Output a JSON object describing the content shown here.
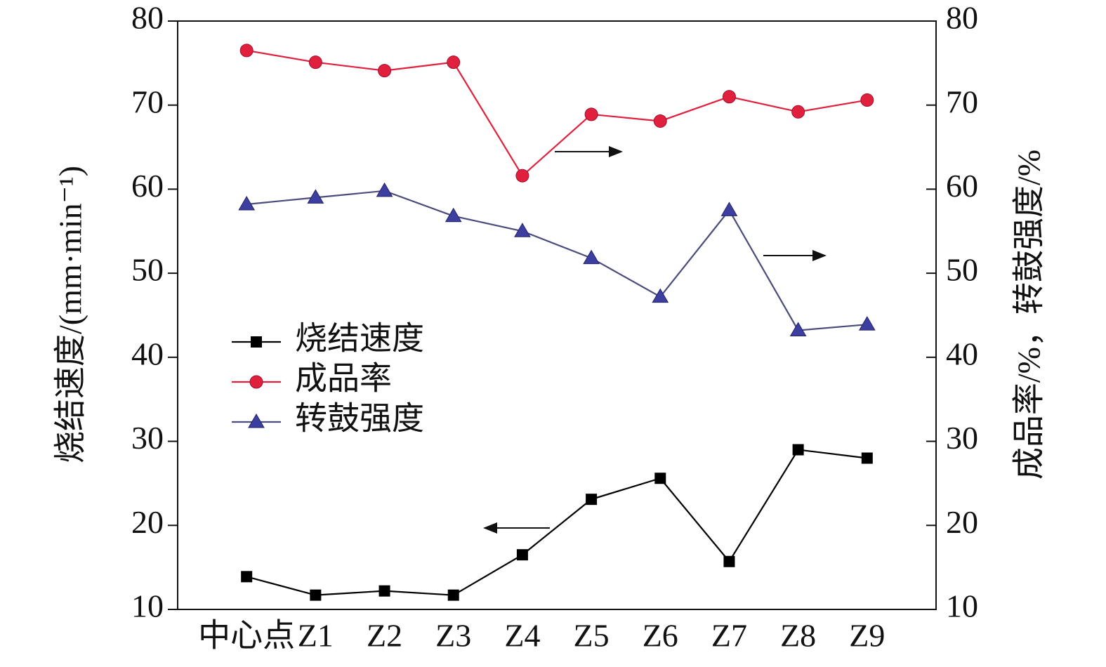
{
  "chart_data": {
    "type": "line",
    "y_label": "烧结速度/(mm·min⁻¹)",
    "y2_label": "成品率/%，转鼓强度/%",
    "categories": [
      "中心点",
      "Z1",
      "Z2",
      "Z3",
      "Z4",
      "Z5",
      "Z6",
      "Z7",
      "Z8",
      "Z9"
    ],
    "series": [
      {
        "name": "烧结速度",
        "color": "#000000",
        "marker": "square",
        "axis": "y",
        "values": [
          13.9,
          11.7,
          12.2,
          11.7,
          16.5,
          23.1,
          25.6,
          15.7,
          29.0,
          28.0
        ]
      },
      {
        "name": "成品率",
        "color": "#e0203c",
        "marker": "circle",
        "axis": "y2",
        "values": [
          76.5,
          75.1,
          74.1,
          75.1,
          61.6,
          68.9,
          68.1,
          71.0,
          69.2,
          70.6
        ]
      },
      {
        "name": "转鼓强度",
        "color": "#3d3fa0",
        "marker": "triangle",
        "axis": "y2",
        "values": [
          58.2,
          59.0,
          59.8,
          56.8,
          55.0,
          51.8,
          47.2,
          57.5,
          43.2,
          43.9
        ]
      }
    ],
    "ylim": [
      10,
      80
    ],
    "yticks": [
      10,
      20,
      30,
      40,
      50,
      60,
      70,
      80
    ],
    "y2lim": [
      10,
      80
    ],
    "y2ticks": [
      10,
      20,
      30,
      40,
      50,
      60,
      70,
      80
    ],
    "legend": "center-left",
    "grid": false
  }
}
